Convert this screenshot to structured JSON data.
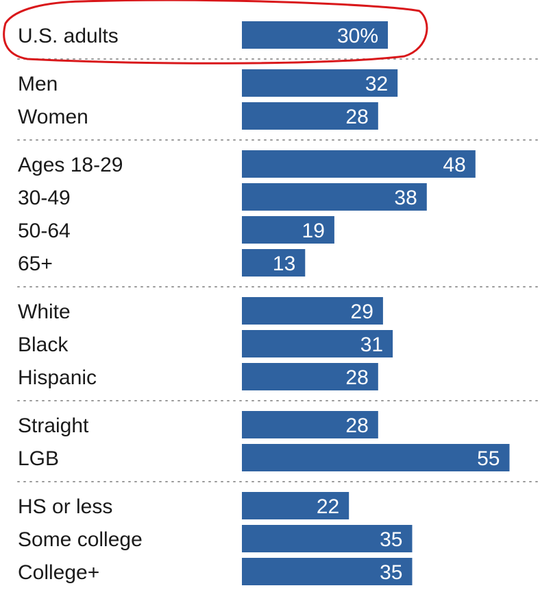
{
  "chart_data": {
    "type": "bar",
    "orientation": "horizontal",
    "title": "",
    "xlabel": "",
    "ylabel": "",
    "xlim": [
      0,
      55
    ],
    "grid": false,
    "legend": "none",
    "value_format": "first value shown with % sign, others plain",
    "bar_color": "#2f62a0",
    "highlight_color": "#d9171a",
    "highlighted_category": "U.S. adults",
    "groups": [
      {
        "rows": [
          {
            "label": "U.S. adults",
            "value": 30,
            "display": "30%"
          }
        ]
      },
      {
        "rows": [
          {
            "label": "Men",
            "value": 32,
            "display": "32"
          },
          {
            "label": "Women",
            "value": 28,
            "display": "28"
          }
        ]
      },
      {
        "rows": [
          {
            "label": "Ages 18-29",
            "value": 48,
            "display": "48"
          },
          {
            "label": "30-49",
            "value": 38,
            "display": "38"
          },
          {
            "label": "50-64",
            "value": 19,
            "display": "19"
          },
          {
            "label": "65+",
            "value": 13,
            "display": "13"
          }
        ]
      },
      {
        "rows": [
          {
            "label": "White",
            "value": 29,
            "display": "29"
          },
          {
            "label": "Black",
            "value": 31,
            "display": "31"
          },
          {
            "label": "Hispanic",
            "value": 28,
            "display": "28"
          }
        ]
      },
      {
        "rows": [
          {
            "label": "Straight",
            "value": 28,
            "display": "28"
          },
          {
            "label": "LGB",
            "value": 55,
            "display": "55"
          }
        ]
      },
      {
        "rows": [
          {
            "label": "HS or less",
            "value": 22,
            "display": "22"
          },
          {
            "label": "Some college",
            "value": 35,
            "display": "35"
          },
          {
            "label": "College+",
            "value": 35,
            "display": "35"
          }
        ]
      }
    ]
  }
}
